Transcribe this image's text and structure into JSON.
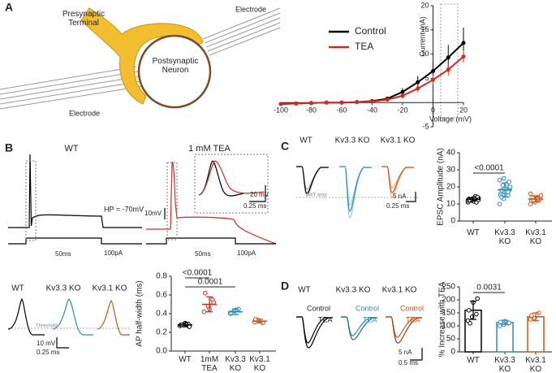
{
  "panel_labels": [
    "A",
    "B",
    "C",
    "D"
  ],
  "diagram": {
    "presynaptic": "Presynaptic Terminal",
    "postsynaptic": "Postsynaptic Neuron",
    "electrodes": [
      "Electrode",
      "Electrode"
    ]
  },
  "traces_B": {
    "titles": [
      "WT",
      "1 mM TEA"
    ],
    "holding": "HP = -70mV",
    "time_scale": [
      "50ms",
      "50ms"
    ],
    "current_scale": [
      "100pA",
      "100pA"
    ],
    "voltage_scale": "10mV",
    "inset_voltage_scale": "20 mV",
    "inset_time_scale": "0.25 ms",
    "genotypes": [
      "WT",
      "Kv3.3 KO",
      "Kv3.1 KO"
    ],
    "threshold": "Threshold",
    "ap_voltage_scale": "10 mV",
    "ap_time_scale": "0.25 ms"
  },
  "traces_C": {
    "genotypes": [
      "WT",
      "Kv3.3 KO",
      "Kv3.1 KO"
    ],
    "reference": "WT amp",
    "current_scale": "5 nA",
    "time_scale": "0.25 ms"
  },
  "traces_D": {
    "genotypes": [
      "WT",
      "Kv3.3 KO",
      "Kv3.1 KO"
    ],
    "conditions": [
      "Control",
      "TEA"
    ],
    "current_scale": "5 nA",
    "time_scale": "0.5 ms"
  },
  "chart_data": [
    {
      "type": "line",
      "xlabel": "Voltage (mV)",
      "ylabel": "Current (nA)",
      "x": [
        -100,
        -90,
        -80,
        -70,
        -60,
        -50,
        -40,
        -30,
        -20,
        -10,
        0,
        10,
        20
      ],
      "series": [
        {
          "name": "Control",
          "color": "#000000",
          "values": [
            -0.3,
            -0.2,
            -0.1,
            0,
            0,
            0.1,
            0.3,
            0.8,
            2.2,
            4.2,
            6.5,
            9.3,
            12.3
          ],
          "errors": [
            0,
            0,
            0,
            0,
            0,
            0,
            0.2,
            0.4,
            0.8,
            1.3,
            1.8,
            2.6,
            3.2
          ]
        },
        {
          "name": "TEA",
          "color": "#d42a1e",
          "values": [
            -0.3,
            -0.2,
            -0.1,
            0,
            0,
            0.1,
            0.2,
            0.6,
            1.4,
            2.9,
            4.7,
            6.8,
            9.5
          ],
          "errors": [
            0,
            0,
            0,
            0,
            0,
            0,
            0.1,
            0.3,
            0.5,
            0.8,
            1.0,
            1.2,
            1.3
          ]
        }
      ],
      "xlim": [
        -100,
        20
      ],
      "ylim": [
        -5,
        20
      ],
      "xticks": [
        -100,
        -80,
        -60,
        -40,
        -20,
        0,
        20
      ],
      "yticks": [
        -5,
        5,
        10,
        15,
        20
      ]
    },
    {
      "type": "dot",
      "ylabel": "AP half-width (ms)",
      "categories": [
        "WT",
        "1mM TEA",
        "Kv3.3 KO",
        "Kv3.1 KO"
      ],
      "colors": [
        "#000000",
        "#d42a1e",
        "#2a8db8",
        "#c8561c"
      ],
      "values": [
        0.28,
        0.5,
        0.42,
        0.32
      ],
      "errors": [
        0.02,
        0.08,
        0.03,
        0.02
      ],
      "points": [
        [
          0.27,
          0.28,
          0.29,
          0.28,
          0.3,
          0.26,
          0.28,
          0.29
        ],
        [
          0.42,
          0.48,
          0.55,
          0.62,
          0.45,
          0.52
        ],
        [
          0.4,
          0.43,
          0.45,
          0.41,
          0.44
        ],
        [
          0.31,
          0.33,
          0.3,
          0.34
        ]
      ],
      "ylim": [
        0,
        0.8
      ],
      "yticks": [
        {
          "value": 0,
          "label": "0.0"
        },
        0.2,
        0.4,
        0.6,
        0.8
      ],
      "comparisons": [
        {
          "label": "<0.0001",
          "groups": [
            "WT",
            "1mM TEA"
          ]
        },
        {
          "label": "0.0001",
          "groups": [
            "WT",
            "Kv3.3 KO"
          ]
        }
      ]
    },
    {
      "type": "dot",
      "ylabel": "EPSC Amplitude (nA)",
      "categories": [
        "WT",
        "Kv3.3 KO",
        "Kv3.1 KO"
      ],
      "colors": [
        "#000000",
        "#2a8db8",
        "#c8561c"
      ],
      "values": [
        12.7,
        18.3,
        12.9
      ],
      "errors": [
        1,
        4,
        1.6
      ],
      "points": [
        [
          11,
          12,
          12.5,
          13,
          13,
          14,
          12,
          11.5,
          13.5,
          12,
          14.5,
          12,
          13,
          11,
          12.5,
          13,
          14,
          12,
          13.5,
          12.5
        ],
        [
          10,
          13,
          15,
          16,
          17,
          18,
          18,
          19,
          20,
          21,
          22,
          24,
          25,
          17,
          15,
          19,
          23,
          14
        ],
        [
          10,
          11,
          12,
          12,
          13,
          13,
          14,
          14,
          15,
          12,
          13,
          16
        ]
      ],
      "ylim": [
        0,
        40
      ],
      "yticks": [
        0,
        10,
        20,
        30,
        40
      ],
      "comparisons": [
        {
          "label": "<0.0001",
          "groups": [
            "WT",
            "Kv3.3 KO"
          ]
        }
      ]
    },
    {
      "type": "bar",
      "ylabel": "% Increase with TEA",
      "categories": [
        "WT",
        "Kv3.3 KO",
        "Kv3.1 KO"
      ],
      "colors": [
        "#000000",
        "#2a8db8",
        "#c8561c"
      ],
      "values": [
        160,
        113,
        135
      ],
      "errors": [
        35,
        8,
        15
      ],
      "points": [
        [
          120,
          135,
          145,
          160,
          190,
          205,
          110
        ],
        [
          100,
          105,
          110,
          115,
          118,
          112
        ],
        [
          125,
          130,
          150,
          140
        ]
      ],
      "ylim": [
        0,
        250
      ],
      "yticks": [
        0,
        50,
        100,
        150,
        200,
        250
      ],
      "comparisons": [
        {
          "label": "0.0031",
          "groups": [
            "WT",
            "Kv3.3 KO"
          ]
        }
      ]
    }
  ]
}
